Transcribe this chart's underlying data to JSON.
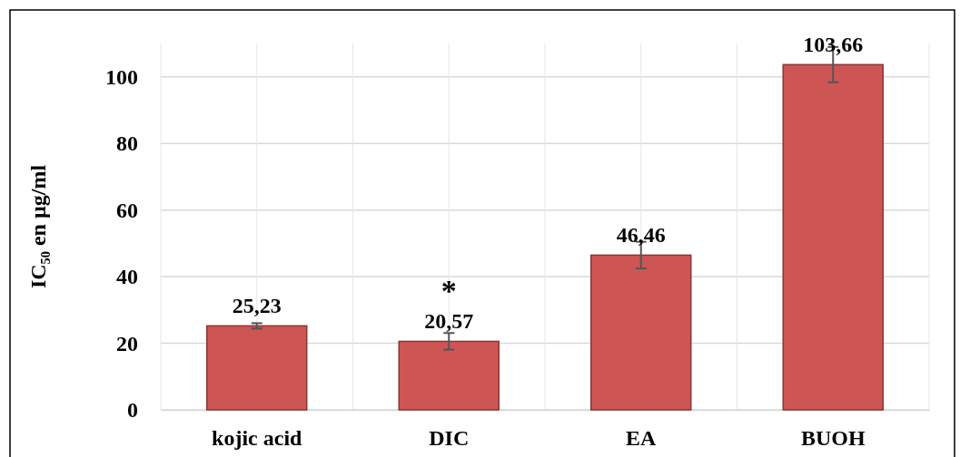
{
  "chart_data": {
    "type": "bar",
    "ylabel": "IC₅₀ en µg/ml",
    "categories": [
      "kojic acid",
      "DIC",
      "EA",
      "BUOH"
    ],
    "values": [
      25.23,
      20.57,
      46.46,
      103.66
    ],
    "errors": [
      0.8,
      2.5,
      4,
      5.3
    ],
    "color": "#cd5654",
    "value_labels": [
      "25,23",
      "20,57",
      "46,46",
      "103,66"
    ],
    "annotations": [
      "*"
    ],
    "ylim": [
      0,
      110
    ],
    "yticks": [
      0,
      20,
      40,
      60,
      80,
      100
    ],
    "grid": true
  }
}
